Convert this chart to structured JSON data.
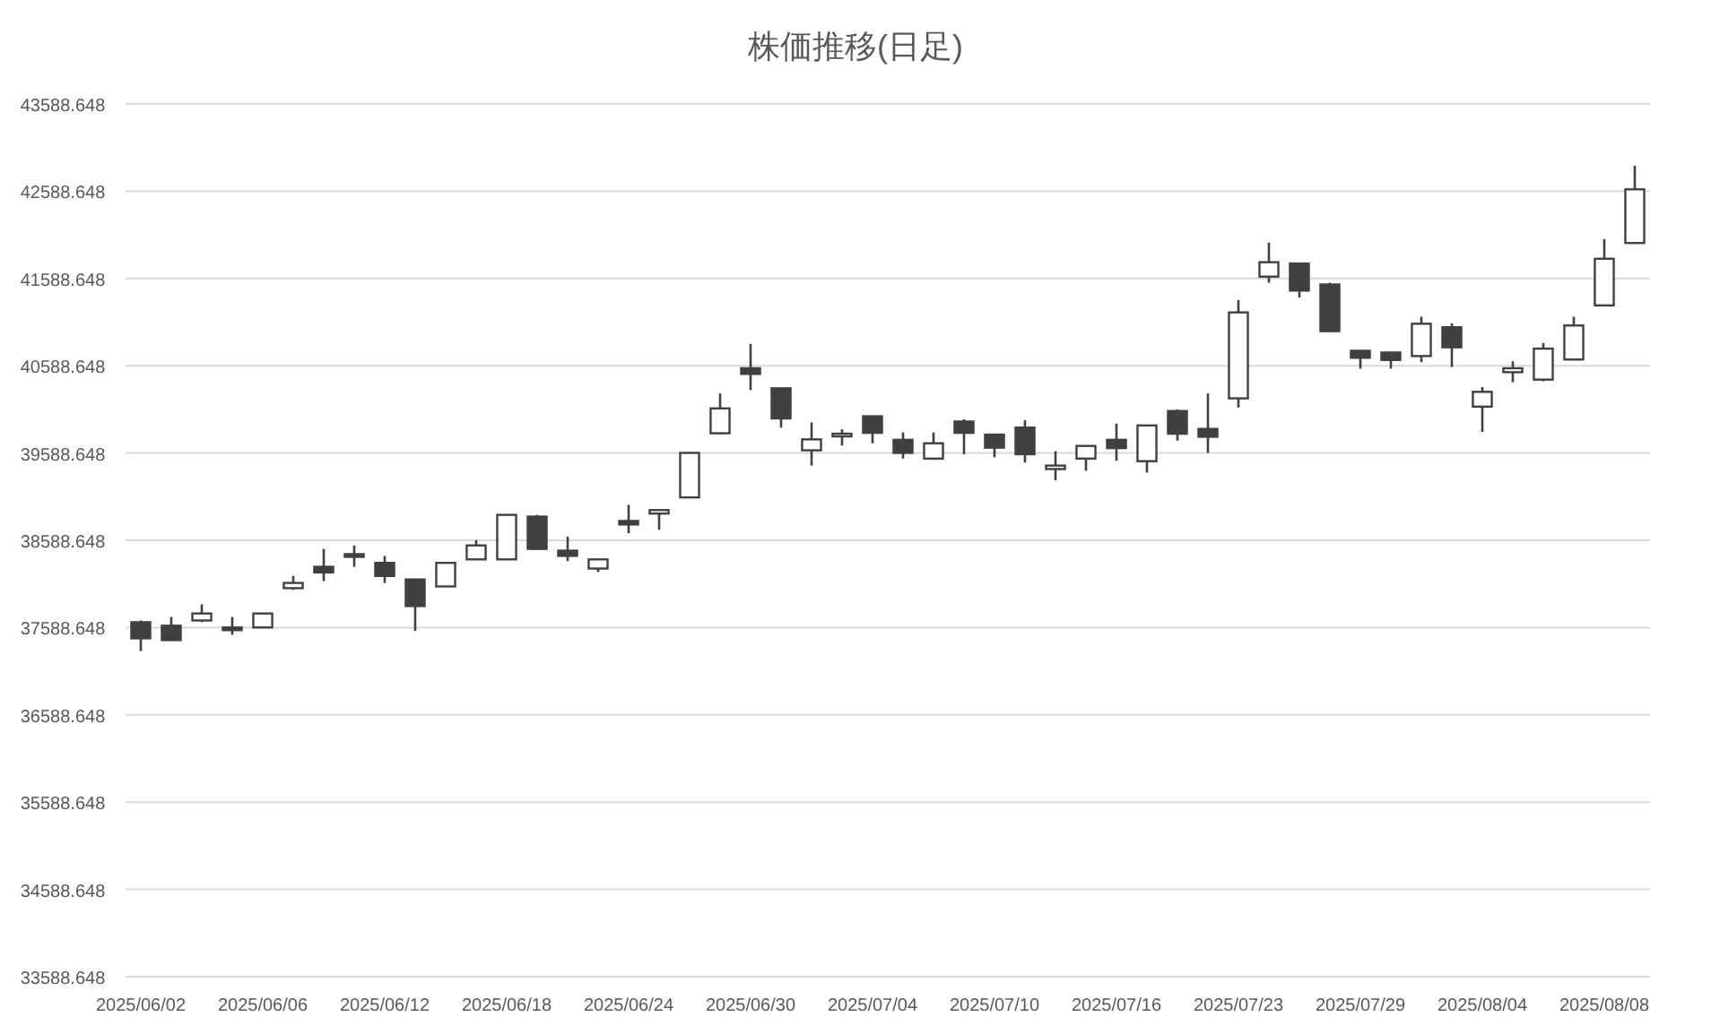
{
  "chart_data": {
    "type": "candlestick",
    "title": "株価推移(日足)",
    "categories": [
      "2025/06/02",
      null,
      null,
      null,
      "2025/06/06",
      null,
      null,
      null,
      "2025/06/12",
      null,
      null,
      null,
      "2025/06/18",
      null,
      null,
      null,
      "2025/06/24",
      null,
      null,
      null,
      "2025/06/30",
      null,
      null,
      null,
      "2025/07/04",
      null,
      null,
      null,
      "2025/07/10",
      null,
      null,
      null,
      "2025/07/16",
      null,
      null,
      null,
      "2025/07/23",
      null,
      null,
      null,
      "2025/07/29",
      null,
      null,
      null,
      "2025/08/04",
      null,
      null,
      null,
      "2025/08/08",
      null
    ],
    "ohlc": [
      [
        37650,
        37670,
        37320,
        37465
      ],
      [
        37610,
        37710,
        37445,
        37445
      ],
      [
        37670,
        37855,
        37650,
        37750
      ],
      [
        37590,
        37710,
        37505,
        37570
      ],
      [
        37590,
        37750,
        37590,
        37750
      ],
      [
        38040,
        38180,
        38020,
        38100
      ],
      [
        38285,
        38490,
        38120,
        38220
      ],
      [
        38430,
        38530,
        38285,
        38410
      ],
      [
        38330,
        38410,
        38100,
        38180
      ],
      [
        38140,
        38140,
        37550,
        37835
      ],
      [
        38060,
        38330,
        38060,
        38330
      ],
      [
        38370,
        38590,
        38370,
        38530
      ],
      [
        38370,
        38880,
        38370,
        38880
      ],
      [
        38860,
        38880,
        38490,
        38490
      ],
      [
        38470,
        38630,
        38350,
        38410
      ],
      [
        38265,
        38370,
        38225,
        38370
      ],
      [
        38810,
        38995,
        38670,
        38770
      ],
      [
        38895,
        38935,
        38710,
        38935
      ],
      [
        39080,
        39600,
        39070,
        39590
      ],
      [
        39815,
        40270,
        39800,
        40100
      ],
      [
        40560,
        40840,
        40310,
        40495
      ],
      [
        40330,
        40340,
        39880,
        39985
      ],
      [
        39620,
        39940,
        39445,
        39745
      ],
      [
        39790,
        39860,
        39675,
        39810
      ],
      [
        40010,
        40010,
        39700,
        39820
      ],
      [
        39740,
        39825,
        39525,
        39590
      ],
      [
        39525,
        39825,
        39510,
        39700
      ],
      [
        39950,
        39975,
        39575,
        39820
      ],
      [
        39800,
        39800,
        39540,
        39650
      ],
      [
        39880,
        39965,
        39480,
        39575
      ],
      [
        39405,
        39610,
        39275,
        39445
      ],
      [
        39525,
        39670,
        39385,
        39670
      ],
      [
        39740,
        39925,
        39500,
        39645
      ],
      [
        39495,
        39905,
        39365,
        39905
      ],
      [
        40070,
        40090,
        39730,
        39810
      ],
      [
        39865,
        40270,
        39590,
        39775
      ],
      [
        40215,
        41340,
        40110,
        41200
      ],
      [
        41610,
        42000,
        41540,
        41775
      ],
      [
        41760,
        41760,
        41370,
        41450
      ],
      [
        41520,
        41540,
        40985,
        40985
      ],
      [
        40760,
        40760,
        40555,
        40680
      ],
      [
        40740,
        40740,
        40555,
        40655
      ],
      [
        40700,
        41150,
        40630,
        41070
      ],
      [
        41030,
        41075,
        40575,
        40800
      ],
      [
        40120,
        40345,
        39830,
        40290
      ],
      [
        40515,
        40640,
        40400,
        40560
      ],
      [
        40430,
        40850,
        40410,
        40785
      ],
      [
        40660,
        41150,
        40650,
        41050
      ],
      [
        41280,
        42040,
        41270,
        41815
      ],
      [
        41995,
        42880,
        41990,
        42610
      ]
    ],
    "ylim": [
      33588.648,
      43588.648
    ],
    "yticks": [
      33588.648,
      34588.648,
      35588.648,
      36588.648,
      37588.648,
      38588.648,
      39588.648,
      40588.648,
      41588.648,
      42588.648,
      43588.648
    ],
    "grid": "y"
  }
}
